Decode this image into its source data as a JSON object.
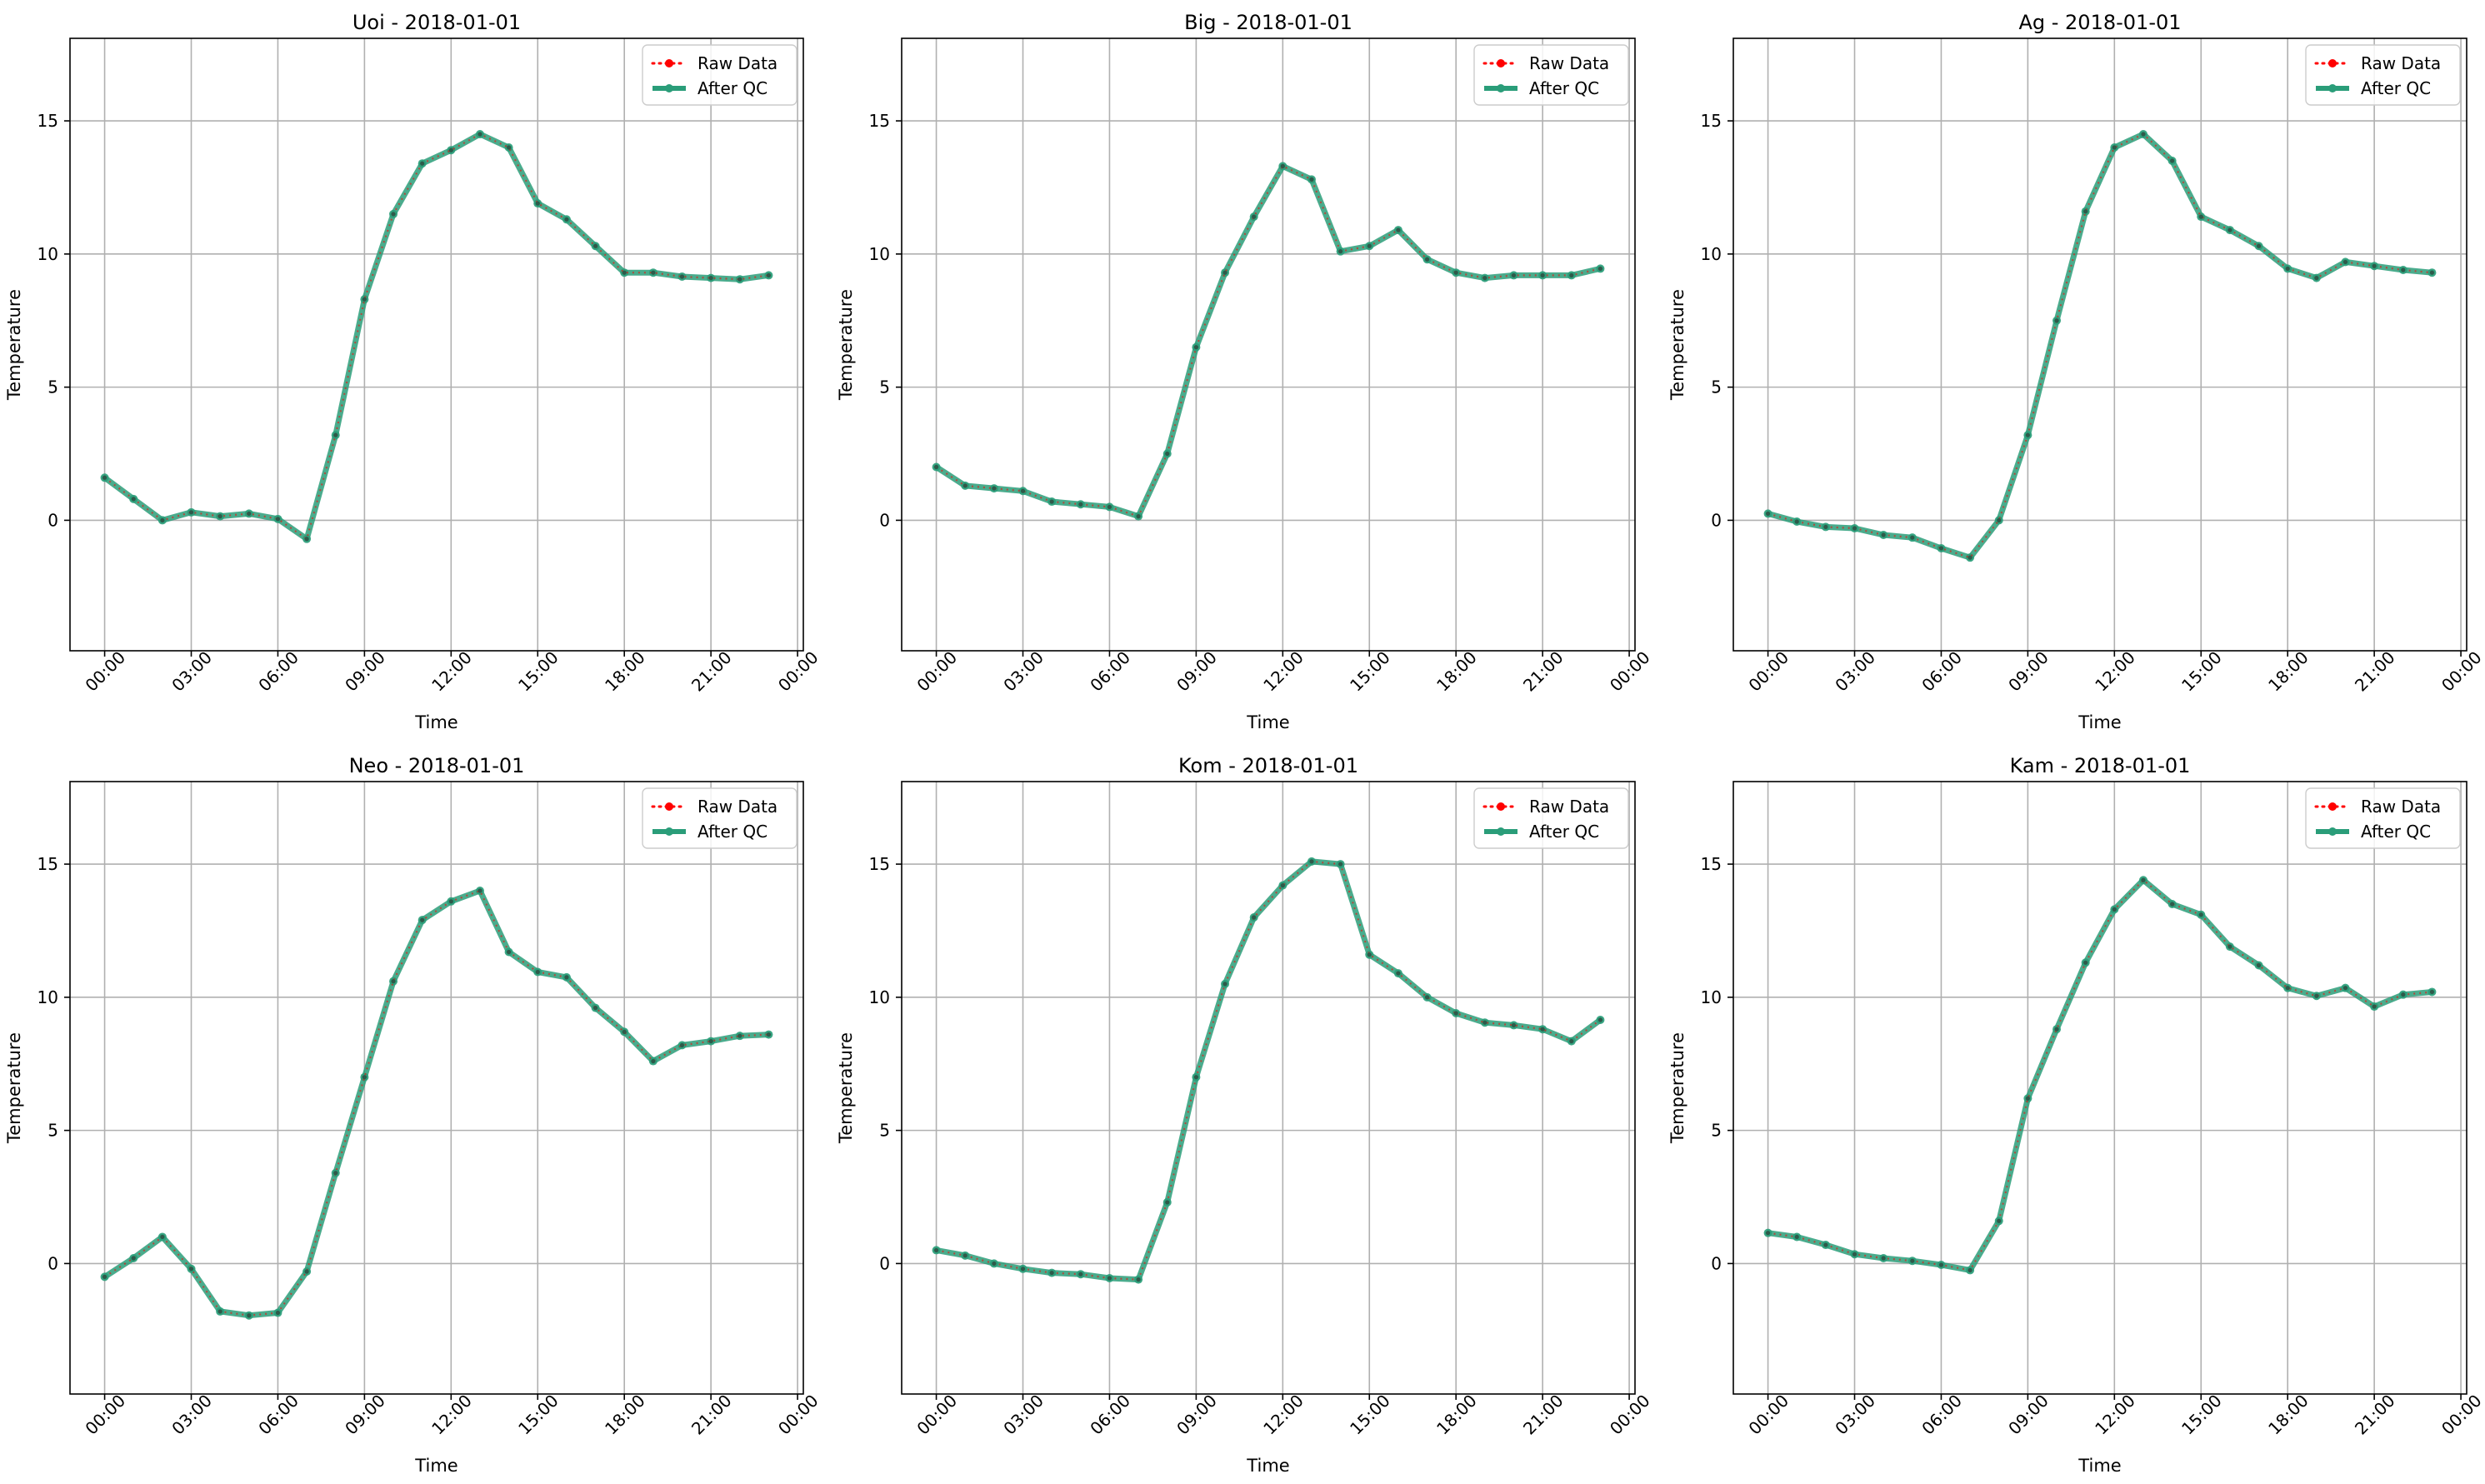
{
  "colors": {
    "raw": "#ff0000",
    "qc": "#2a9d79",
    "grid": "#b0b0b0",
    "axis": "#000000"
  },
  "legend_labels": {
    "raw": "Raw Data",
    "qc": "After QC"
  },
  "chart_data": [
    {
      "type": "line",
      "title": "Uoi - 2018-01-01",
      "xlabel": "Time",
      "ylabel": "Temperature",
      "x_ticks": [
        "00:00",
        "03:00",
        "06:00",
        "09:00",
        "12:00",
        "15:00",
        "18:00",
        "21:00",
        "00:00"
      ],
      "y_ticks": [
        0,
        5,
        10,
        15
      ],
      "xlim_hours": [
        -1.2,
        24.2
      ],
      "ylim": [
        -4.9,
        18.1
      ],
      "grid": true,
      "legend_position": "top-right",
      "x_hours": [
        0,
        1,
        2,
        3,
        4,
        5,
        6,
        7,
        8,
        9,
        10,
        11,
        12,
        13,
        14,
        15,
        16,
        17,
        18,
        19,
        20,
        21,
        22,
        23
      ],
      "series": [
        {
          "name": "Raw Data",
          "values": [
            1.6,
            0.8,
            0.0,
            0.3,
            0.15,
            0.25,
            0.05,
            -0.7,
            3.2,
            8.3,
            11.5,
            13.4,
            13.9,
            14.5,
            14.0,
            11.9,
            11.3,
            10.3,
            9.3,
            9.3,
            9.15,
            9.1,
            9.05,
            9.2
          ]
        },
        {
          "name": "After QC",
          "values": [
            1.6,
            0.8,
            0.0,
            0.3,
            0.15,
            0.25,
            0.05,
            -0.7,
            3.2,
            8.3,
            11.5,
            13.4,
            13.9,
            14.5,
            14.0,
            11.9,
            11.3,
            10.3,
            9.3,
            9.3,
            9.15,
            9.1,
            9.05,
            9.2
          ]
        }
      ]
    },
    {
      "type": "line",
      "title": "Big - 2018-01-01",
      "xlabel": "Time",
      "ylabel": "Temperature",
      "x_ticks": [
        "00:00",
        "03:00",
        "06:00",
        "09:00",
        "12:00",
        "15:00",
        "18:00",
        "21:00",
        "00:00"
      ],
      "y_ticks": [
        0,
        5,
        10,
        15
      ],
      "xlim_hours": [
        -1.2,
        24.2
      ],
      "ylim": [
        -4.9,
        18.1
      ],
      "grid": true,
      "legend_position": "top-right",
      "x_hours": [
        0,
        1,
        2,
        3,
        4,
        5,
        6,
        7,
        8,
        9,
        10,
        11,
        12,
        13,
        14,
        15,
        16,
        17,
        18,
        19,
        20,
        21,
        22,
        23
      ],
      "series": [
        {
          "name": "Raw Data",
          "values": [
            2.0,
            1.3,
            1.2,
            1.1,
            0.7,
            0.6,
            0.5,
            0.15,
            2.5,
            6.5,
            9.3,
            11.4,
            13.3,
            12.8,
            10.1,
            10.3,
            10.9,
            9.8,
            9.3,
            9.1,
            9.2,
            9.2,
            9.2,
            9.45
          ]
        },
        {
          "name": "After QC",
          "values": [
            2.0,
            1.3,
            1.2,
            1.1,
            0.7,
            0.6,
            0.5,
            0.15,
            2.5,
            6.5,
            9.3,
            11.4,
            13.3,
            12.8,
            10.1,
            10.3,
            10.9,
            9.8,
            9.3,
            9.1,
            9.2,
            9.2,
            9.2,
            9.45
          ]
        }
      ]
    },
    {
      "type": "line",
      "title": "Ag - 2018-01-01",
      "xlabel": "Time",
      "ylabel": "Temperature",
      "x_ticks": [
        "00:00",
        "03:00",
        "06:00",
        "09:00",
        "12:00",
        "15:00",
        "18:00",
        "21:00",
        "00:00"
      ],
      "y_ticks": [
        0,
        5,
        10,
        15
      ],
      "xlim_hours": [
        -1.2,
        24.2
      ],
      "ylim": [
        -4.9,
        18.1
      ],
      "grid": true,
      "legend_position": "top-right",
      "x_hours": [
        0,
        1,
        2,
        3,
        4,
        5,
        6,
        7,
        8,
        9,
        10,
        11,
        12,
        13,
        14,
        15,
        16,
        17,
        18,
        19,
        20,
        21,
        22,
        23
      ],
      "series": [
        {
          "name": "Raw Data",
          "values": [
            0.25,
            -0.05,
            -0.25,
            -0.3,
            -0.55,
            -0.65,
            -1.05,
            -1.4,
            0.0,
            3.2,
            7.5,
            11.6,
            14.0,
            14.5,
            13.5,
            11.4,
            10.9,
            10.3,
            9.45,
            9.1,
            9.7,
            9.55,
            9.4,
            9.3
          ]
        },
        {
          "name": "After QC",
          "values": [
            0.25,
            -0.05,
            -0.25,
            -0.3,
            -0.55,
            -0.65,
            -1.05,
            -1.4,
            0.0,
            3.2,
            7.5,
            11.6,
            14.0,
            14.5,
            13.5,
            11.4,
            10.9,
            10.3,
            9.45,
            9.1,
            9.7,
            9.55,
            9.4,
            9.3
          ]
        }
      ]
    },
    {
      "type": "line",
      "title": "Neo - 2018-01-01",
      "xlabel": "Time",
      "ylabel": "Temperature",
      "x_ticks": [
        "00:00",
        "03:00",
        "06:00",
        "09:00",
        "12:00",
        "15:00",
        "18:00",
        "21:00",
        "00:00"
      ],
      "y_ticks": [
        0,
        5,
        10,
        15
      ],
      "xlim_hours": [
        -1.2,
        24.2
      ],
      "ylim": [
        -4.9,
        18.1
      ],
      "grid": true,
      "legend_position": "top-right",
      "x_hours": [
        0,
        1,
        2,
        3,
        4,
        5,
        6,
        7,
        8,
        9,
        10,
        11,
        12,
        13,
        14,
        15,
        16,
        17,
        18,
        19,
        20,
        21,
        22,
        23
      ],
      "series": [
        {
          "name": "Raw Data",
          "values": [
            -0.5,
            0.2,
            1.0,
            -0.2,
            -1.8,
            -1.95,
            -1.85,
            -0.3,
            3.4,
            7.0,
            10.6,
            12.9,
            13.6,
            14.0,
            11.7,
            10.95,
            10.75,
            9.6,
            8.7,
            7.6,
            8.2,
            8.35,
            8.55,
            8.6
          ]
        },
        {
          "name": "After QC",
          "values": [
            -0.5,
            0.2,
            1.0,
            -0.2,
            -1.8,
            -1.95,
            -1.85,
            -0.3,
            3.4,
            7.0,
            10.6,
            12.9,
            13.6,
            14.0,
            11.7,
            10.95,
            10.75,
            9.6,
            8.7,
            7.6,
            8.2,
            8.35,
            8.55,
            8.6
          ]
        }
      ]
    },
    {
      "type": "line",
      "title": "Kom - 2018-01-01",
      "xlabel": "Time",
      "ylabel": "Temperature",
      "x_ticks": [
        "00:00",
        "03:00",
        "06:00",
        "09:00",
        "12:00",
        "15:00",
        "18:00",
        "21:00",
        "00:00"
      ],
      "y_ticks": [
        0,
        5,
        10,
        15
      ],
      "xlim_hours": [
        -1.2,
        24.2
      ],
      "ylim": [
        -4.9,
        18.1
      ],
      "grid": true,
      "legend_position": "top-right",
      "x_hours": [
        0,
        1,
        2,
        3,
        4,
        5,
        6,
        7,
        8,
        9,
        10,
        11,
        12,
        13,
        14,
        15,
        16,
        17,
        18,
        19,
        20,
        21,
        22,
        23
      ],
      "series": [
        {
          "name": "Raw Data",
          "values": [
            0.5,
            0.3,
            0.0,
            -0.2,
            -0.35,
            -0.4,
            -0.55,
            -0.6,
            2.3,
            7.0,
            10.5,
            13.0,
            14.2,
            15.1,
            15.0,
            11.6,
            10.9,
            10.0,
            9.4,
            9.05,
            8.95,
            8.8,
            8.35,
            9.15
          ]
        },
        {
          "name": "After QC",
          "values": [
            0.5,
            0.3,
            0.0,
            -0.2,
            -0.35,
            -0.4,
            -0.55,
            -0.6,
            2.3,
            7.0,
            10.5,
            13.0,
            14.2,
            15.1,
            15.0,
            11.6,
            10.9,
            10.0,
            9.4,
            9.05,
            8.95,
            8.8,
            8.35,
            9.15
          ]
        }
      ]
    },
    {
      "type": "line",
      "title": "Kam - 2018-01-01",
      "xlabel": "Time",
      "ylabel": "Temperature",
      "x_ticks": [
        "00:00",
        "03:00",
        "06:00",
        "09:00",
        "12:00",
        "15:00",
        "18:00",
        "21:00",
        "00:00"
      ],
      "y_ticks": [
        0,
        5,
        10,
        15
      ],
      "xlim_hours": [
        -1.2,
        24.2
      ],
      "ylim": [
        -4.9,
        18.1
      ],
      "grid": true,
      "legend_position": "top-right",
      "x_hours": [
        0,
        1,
        2,
        3,
        4,
        5,
        6,
        7,
        8,
        9,
        10,
        11,
        12,
        13,
        14,
        15,
        16,
        17,
        18,
        19,
        20,
        21,
        22,
        23
      ],
      "series": [
        {
          "name": "Raw Data",
          "values": [
            1.15,
            1.0,
            0.7,
            0.35,
            0.2,
            0.1,
            -0.05,
            -0.25,
            1.6,
            6.2,
            8.8,
            11.3,
            13.3,
            14.4,
            13.5,
            13.1,
            11.9,
            11.2,
            10.35,
            10.05,
            10.35,
            9.65,
            10.1,
            10.2
          ]
        },
        {
          "name": "After QC",
          "values": [
            1.15,
            1.0,
            0.7,
            0.35,
            0.2,
            0.1,
            -0.05,
            -0.25,
            1.6,
            6.2,
            8.8,
            11.3,
            13.3,
            14.4,
            13.5,
            13.1,
            11.9,
            11.2,
            10.35,
            10.05,
            10.35,
            9.65,
            10.1,
            10.2
          ]
        }
      ]
    }
  ]
}
